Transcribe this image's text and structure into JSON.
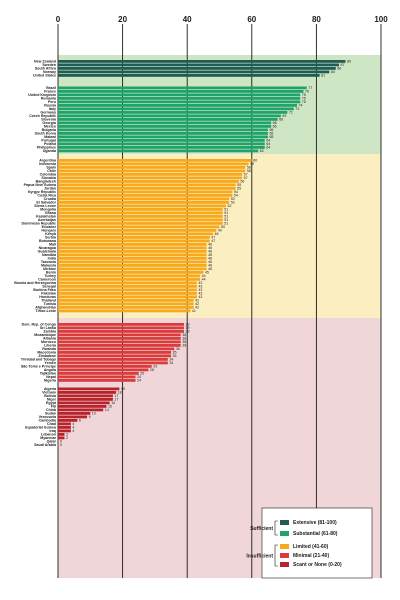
{
  "chart_data": {
    "type": "bar",
    "orientation": "horizontal",
    "xlim": [
      0,
      100
    ],
    "x_ticks": [
      0,
      20,
      40,
      60,
      80,
      100
    ],
    "grid": true,
    "legend_position": "bottom-right",
    "groups": [
      {
        "label": "Sufficient",
        "members": [
          "Extensive (81-100)",
          "Substantial (61-80)"
        ]
      },
      {
        "label": "Insufficient",
        "members": [
          "Limited (41-60)",
          "Minimal (21-40)",
          "Scant or None (0-20)"
        ]
      }
    ],
    "series": [
      {
        "name": "Extensive (81-100)",
        "color": "#1f5c55",
        "band": "#cfe6c4",
        "categories": [
          "New Zealand",
          "Sweden",
          "South Africa",
          "Norway",
          "United States"
        ],
        "values": [
          89,
          87,
          86,
          84,
          81
        ]
      },
      {
        "name": "Substantial (61-80)",
        "color": "#1ea36a",
        "band": "#cfe6c4",
        "categories": [
          "Brazil",
          "France",
          "United Kingdom",
          "Romania",
          "Peru",
          "Russia",
          "Italy",
          "Germany",
          "Czech Republic",
          "Slovenia",
          "Georgia",
          "Mexico",
          "Bulgaria",
          "South Korea",
          "Malawi",
          "Portugal",
          "Poland",
          "Philippines",
          "Uganda"
        ],
        "values": [
          77,
          76,
          75,
          75,
          75,
          74,
          73,
          71,
          69,
          68,
          66,
          66,
          65,
          65,
          65,
          64,
          64,
          64,
          62
        ]
      },
      {
        "name": "Limited (41-60)",
        "color": "#f7a81b",
        "band": "#fbeec0",
        "categories": [
          "Argentina",
          "Indonesia",
          "Spain",
          "Chile",
          "Colombia",
          "Slovakia",
          "Bangladesh",
          "Papua New Guinea",
          "Jordan",
          "Kyrgyz Republic",
          "Costa Rica",
          "Croatia",
          "El Salvador",
          "Sierra Leone",
          "Mongolia",
          "Ghana",
          "Kazakhstan",
          "Azerbaijan",
          "Dominican Republic",
          "Ecuador",
          "Hungary",
          "Kenya",
          "Serbia",
          "Botswana",
          "Mali",
          "Nicaragua",
          "Guatemala",
          "Namibia",
          "India",
          "Tanzania",
          "Malaysia",
          "Ukraine",
          "Benin",
          "Turkey",
          "Cameroon",
          "Bosnia and Herzegovina",
          "Senegal",
          "Burkina Faso",
          "Pakistan",
          "Honduras",
          "Thailand",
          "Tunisia",
          "Afghanistan",
          "Timor-Leste"
        ],
        "values": [
          60,
          59,
          58,
          58,
          57,
          57,
          56,
          55,
          55,
          54,
          54,
          53,
          53,
          52,
          51,
          51,
          51,
          51,
          51,
          50,
          49,
          48,
          47,
          47,
          46,
          46,
          46,
          46,
          46,
          46,
          46,
          46,
          45,
          44,
          44,
          43,
          43,
          43,
          43,
          43,
          42,
          42,
          42,
          41
        ]
      },
      {
        "name": "Minimal (21-40)",
        "color": "#db3b3b",
        "band": "#f0d6d9",
        "categories": [
          "Dem. Rep. of Congo",
          "Sri Lanka",
          "Zambia",
          "Mozambique",
          "Albania",
          "Morocco",
          "Liberia",
          "Rwanda",
          "Macedonia",
          "Zimbabwe",
          "Trinidad and Tobago",
          "Yemen",
          "São Tomé e Príncipe",
          "Angola",
          "Tajikistan",
          "Nepal",
          "Nigeria"
        ],
        "values": [
          39,
          39,
          39,
          38,
          38,
          38,
          38,
          36,
          35,
          35,
          34,
          34,
          29,
          28,
          25,
          24,
          24
        ]
      },
      {
        "name": "Scant or None (0-20)",
        "color": "#b8232b",
        "band": "#f0d6d9",
        "categories": [
          "Algeria",
          "Vietnam",
          "Bolivia",
          "Niger",
          "Egypt",
          "Fiji",
          "China",
          "Sudan",
          "Venezuela",
          "Cambodia",
          "Chad",
          "Equatorial Guinea",
          "Iraq",
          "Lebanon",
          "Myanmar",
          "Qatar",
          "Saudi Arabia"
        ],
        "values": [
          19,
          18,
          17,
          17,
          16,
          15,
          14,
          10,
          9,
          6,
          4,
          4,
          4,
          2,
          2,
          0,
          0
        ]
      }
    ]
  }
}
